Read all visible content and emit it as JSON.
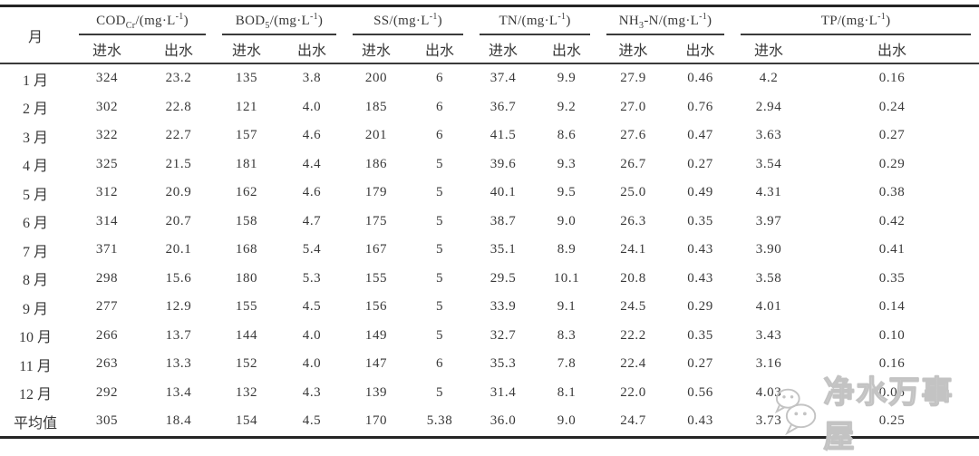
{
  "table": {
    "month_header": "月",
    "sub_headers": {
      "in": "进水",
      "out": "出水"
    },
    "groups": [
      {
        "name": "COD",
        "sub": "Cr",
        "unit_open": "/(mg·L",
        "sup": "-1",
        "unit_close": ")"
      },
      {
        "name": "BOD",
        "sub": "5",
        "unit_open": "/(mg·L",
        "sup": "-1",
        "unit_close": ")"
      },
      {
        "name": "SS",
        "sub": "",
        "unit_open": "/(mg·L",
        "sup": "-1",
        "unit_close": ")"
      },
      {
        "name": "TN",
        "sub": "",
        "unit_open": "/(mg·L",
        "sup": "-1",
        "unit_close": ")"
      },
      {
        "name": "NH",
        "sub": "3",
        "unit_open": "-N/(mg·L",
        "sup": "-1",
        "unit_close": ")"
      },
      {
        "name": "TP",
        "sub": "",
        "unit_open": "/(mg·L",
        "sup": "-1",
        "unit_close": ")"
      }
    ],
    "rows": [
      {
        "month": "1 月",
        "values": [
          "324",
          "23.2",
          "135",
          "3.8",
          "200",
          "6",
          "37.4",
          "9.9",
          "27.9",
          "0.46",
          "4.2",
          "0.16"
        ]
      },
      {
        "month": "2 月",
        "values": [
          "302",
          "22.8",
          "121",
          "4.0",
          "185",
          "6",
          "36.7",
          "9.2",
          "27.0",
          "0.76",
          "2.94",
          "0.24"
        ]
      },
      {
        "month": "3 月",
        "values": [
          "322",
          "22.7",
          "157",
          "4.6",
          "201",
          "6",
          "41.5",
          "8.6",
          "27.6",
          "0.47",
          "3.63",
          "0.27"
        ]
      },
      {
        "month": "4 月",
        "values": [
          "325",
          "21.5",
          "181",
          "4.4",
          "186",
          "5",
          "39.6",
          "9.3",
          "26.7",
          "0.27",
          "3.54",
          "0.29"
        ]
      },
      {
        "month": "5 月",
        "values": [
          "312",
          "20.9",
          "162",
          "4.6",
          "179",
          "5",
          "40.1",
          "9.5",
          "25.0",
          "0.49",
          "4.31",
          "0.38"
        ]
      },
      {
        "month": "6 月",
        "values": [
          "314",
          "20.7",
          "158",
          "4.7",
          "175",
          "5",
          "38.7",
          "9.0",
          "26.3",
          "0.35",
          "3.97",
          "0.42"
        ]
      },
      {
        "month": "7 月",
        "values": [
          "371",
          "20.1",
          "168",
          "5.4",
          "167",
          "5",
          "35.1",
          "8.9",
          "24.1",
          "0.43",
          "3.90",
          "0.41"
        ]
      },
      {
        "month": "8 月",
        "values": [
          "298",
          "15.6",
          "180",
          "5.3",
          "155",
          "5",
          "29.5",
          "10.1",
          "20.8",
          "0.43",
          "3.58",
          "0.35"
        ]
      },
      {
        "month": "9 月",
        "values": [
          "277",
          "12.9",
          "155",
          "4.5",
          "156",
          "5",
          "33.9",
          "9.1",
          "24.5",
          "0.29",
          "4.01",
          "0.14"
        ]
      },
      {
        "month": "10 月",
        "values": [
          "266",
          "13.7",
          "144",
          "4.0",
          "149",
          "5",
          "32.7",
          "8.3",
          "22.2",
          "0.35",
          "3.43",
          "0.10"
        ]
      },
      {
        "month": "11 月",
        "values": [
          "263",
          "13.3",
          "152",
          "4.0",
          "147",
          "6",
          "35.3",
          "7.8",
          "22.4",
          "0.27",
          "3.16",
          "0.16"
        ]
      },
      {
        "month": "12 月",
        "values": [
          "292",
          "13.4",
          "132",
          "4.3",
          "139",
          "5",
          "31.4",
          "8.1",
          "22.0",
          "0.56",
          "4.03",
          "0.06"
        ]
      },
      {
        "month": "平均值",
        "values": [
          "305",
          "18.4",
          "154",
          "4.5",
          "170",
          "5.38",
          "36.0",
          "9.0",
          "24.7",
          "0.43",
          "3.73",
          "0.25"
        ]
      }
    ]
  },
  "watermark": {
    "icon": "wechat-icon",
    "text": "净水万事屋"
  }
}
